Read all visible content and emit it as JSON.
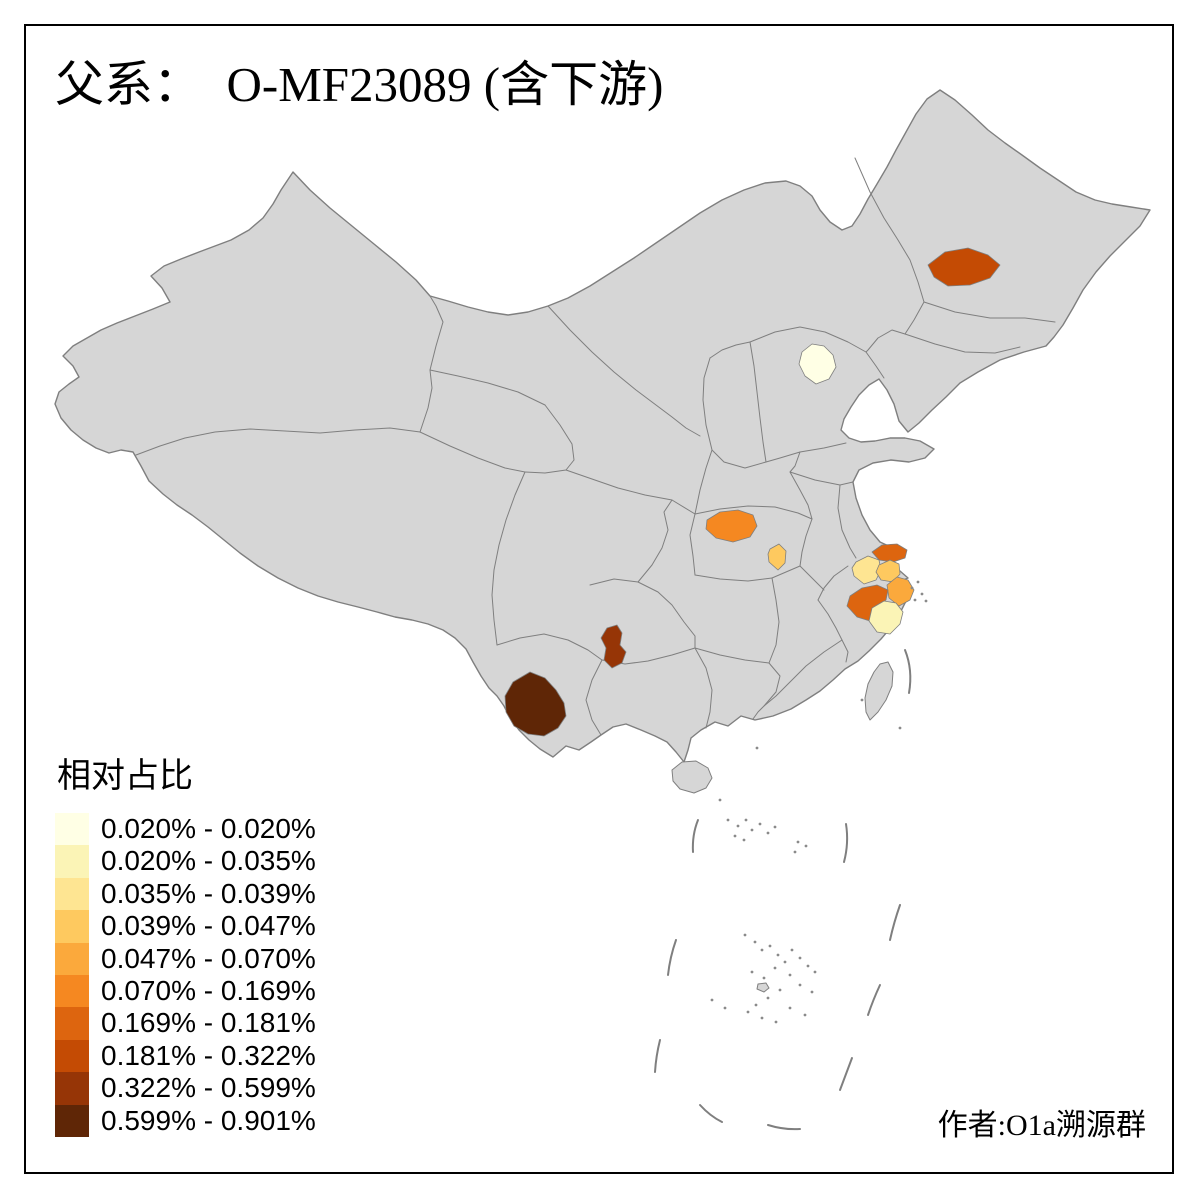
{
  "title": "父系：  O-MF23089 (含下游)",
  "attribution": "作者:O1a溯源群",
  "legend": {
    "title": "相对占比",
    "items": [
      {
        "label": "0.020% - 0.020%",
        "color": "#FFFFE5"
      },
      {
        "label": "0.020% - 0.035%",
        "color": "#FBF4B6"
      },
      {
        "label": "0.035% - 0.039%",
        "color": "#FEE592"
      },
      {
        "label": "0.039% - 0.047%",
        "color": "#FEC95F"
      },
      {
        "label": "0.047% - 0.070%",
        "color": "#FBA93C"
      },
      {
        "label": "0.070% - 0.169%",
        "color": "#F58821"
      },
      {
        "label": "0.169% - 0.181%",
        "color": "#DD650F"
      },
      {
        "label": "0.181% - 0.322%",
        "color": "#C44B04"
      },
      {
        "label": "0.322% - 0.599%",
        "color": "#963506"
      },
      {
        "label": "0.599% - 0.901%",
        "color": "#5F2606"
      }
    ]
  },
  "map": {
    "land_color": "#D6D6D6",
    "border_color": "#7F7F7F",
    "sea_color": "#FFFFFF",
    "frame_color": "#000000",
    "regions": [
      {
        "name": "heilongjiang-harbin-area",
        "range": "0.181% - 0.322%",
        "color": "#C44B04"
      },
      {
        "name": "beijing",
        "range": "0.020% - 0.020%",
        "color": "#FFFFE5"
      },
      {
        "name": "hubei-northwest",
        "range": "0.070% - 0.169%",
        "color": "#F58821"
      },
      {
        "name": "hubei-central",
        "range": "0.039% - 0.047%",
        "color": "#FEC95F"
      },
      {
        "name": "jiangsu-nantong",
        "range": "0.169% - 0.181%",
        "color": "#DD650F"
      },
      {
        "name": "jiangsu-south",
        "range": "0.035% - 0.039%",
        "color": "#FEE592"
      },
      {
        "name": "shanghai-area",
        "range": "0.039% - 0.047%",
        "color": "#FEC95F"
      },
      {
        "name": "zhejiang-ningbo",
        "range": "0.047% - 0.070%",
        "color": "#FBA93C"
      },
      {
        "name": "zhejiang-hangzhou",
        "range": "0.169% - 0.181%",
        "color": "#DD650F"
      },
      {
        "name": "zhejiang-taizhou",
        "range": "0.020% - 0.035%",
        "color": "#FBF4B6"
      },
      {
        "name": "sichuan-guizhou-border",
        "range": "0.322% - 0.599%",
        "color": "#963506"
      },
      {
        "name": "yunnan-south",
        "range": "0.599% - 0.901%",
        "color": "#5F2606"
      }
    ]
  },
  "chart_data": {
    "type": "choropleth",
    "title": "父系：  O-MF23089 (含下游)",
    "legend_title": "相对占比",
    "classes": [
      "0.020% - 0.020%",
      "0.020% - 0.035%",
      "0.035% - 0.039%",
      "0.039% - 0.047%",
      "0.047% - 0.070%",
      "0.070% - 0.169%",
      "0.169% - 0.181%",
      "0.181% - 0.322%",
      "0.322% - 0.599%",
      "0.599% - 0.901%"
    ],
    "palette": [
      "#FFFFE5",
      "#FBF4B6",
      "#FEE592",
      "#FEC95F",
      "#FBA93C",
      "#F58821",
      "#DD650F",
      "#C44B04",
      "#963506",
      "#5F2606"
    ],
    "highlighted_regions": [
      {
        "region": "heilongjiang-harbin-area",
        "value_range": "0.181% - 0.322%"
      },
      {
        "region": "beijing",
        "value_range": "0.020% - 0.020%"
      },
      {
        "region": "hubei-northwest",
        "value_range": "0.070% - 0.169%"
      },
      {
        "region": "hubei-central",
        "value_range": "0.039% - 0.047%"
      },
      {
        "region": "jiangsu-nantong",
        "value_range": "0.169% - 0.181%"
      },
      {
        "region": "jiangsu-south",
        "value_range": "0.035% - 0.039%"
      },
      {
        "region": "shanghai-area",
        "value_range": "0.039% - 0.047%"
      },
      {
        "region": "zhejiang-ningbo",
        "value_range": "0.047% - 0.070%"
      },
      {
        "region": "zhejiang-hangzhou",
        "value_range": "0.169% - 0.181%"
      },
      {
        "region": "zhejiang-taizhou",
        "value_range": "0.020% - 0.035%"
      },
      {
        "region": "sichuan-guizhou-border",
        "value_range": "0.322% - 0.599%"
      },
      {
        "region": "yunnan-south",
        "value_range": "0.599% - 0.901%"
      }
    ]
  }
}
